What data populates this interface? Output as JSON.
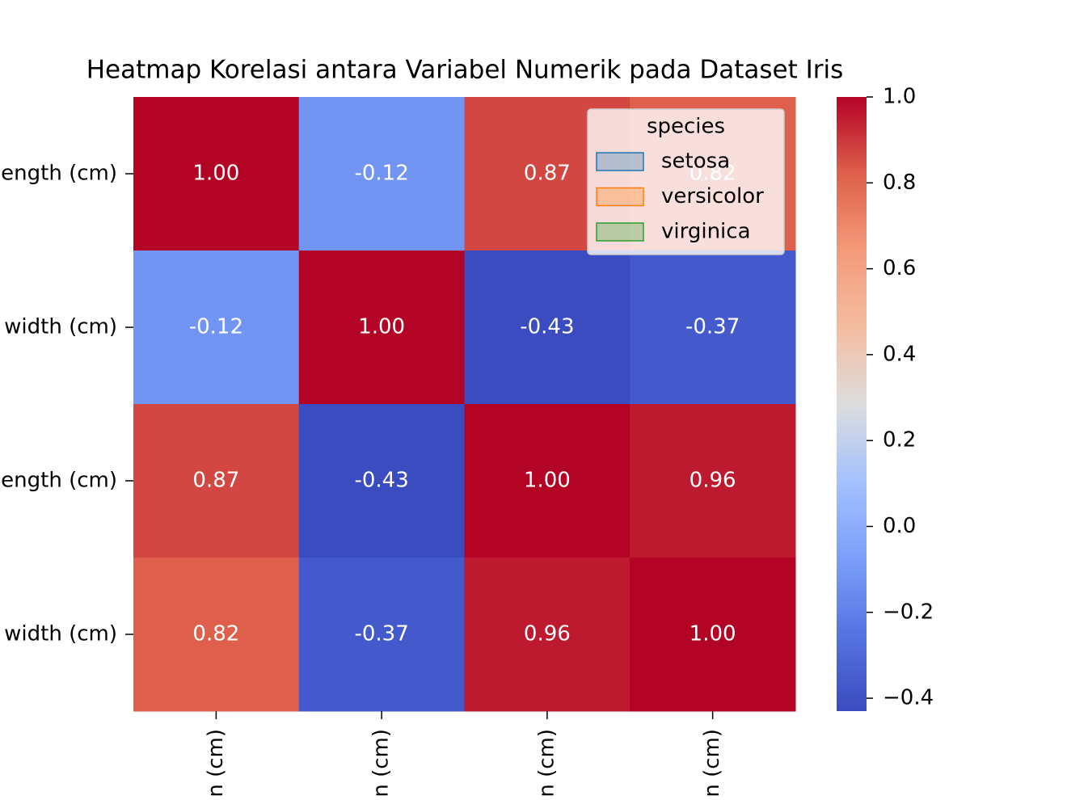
{
  "chart_data": {
    "type": "heatmap",
    "title": "Heatmap Korelasi antara Variabel Numerik pada Dataset Iris",
    "x_categories": [
      "n (cm)",
      "n (cm)",
      "n (cm)",
      "n (cm)"
    ],
    "y_categories": [
      "ength (cm)",
      "width (cm)",
      "ength (cm)",
      "width (cm)"
    ],
    "values": [
      [
        1.0,
        -0.12,
        0.87,
        0.82
      ],
      [
        -0.12,
        1.0,
        -0.43,
        -0.37
      ],
      [
        0.87,
        -0.43,
        1.0,
        0.96
      ],
      [
        0.82,
        -0.37,
        0.96,
        1.0
      ]
    ],
    "value_labels": [
      [
        "1.00",
        "-0.12",
        "0.87",
        "0.82"
      ],
      [
        "-0.12",
        "1.00",
        "-0.43",
        "-0.37"
      ],
      [
        "0.87",
        "-0.43",
        "1.00",
        "0.96"
      ],
      [
        "0.82",
        "-0.37",
        "0.96",
        "1.00"
      ]
    ],
    "colormap": "coolwarm",
    "clim": [
      -0.43,
      1.0
    ],
    "cticks": [
      {
        "value": 1.0,
        "label": "1.0"
      },
      0.8,
      0.6,
      0.4,
      0.2,
      {
        "value": 0.0,
        "label": "0.0"
      },
      {
        "value": -0.2,
        "label": "−0.2"
      },
      {
        "value": -0.4,
        "label": "−0.4"
      }
    ],
    "legend": {
      "title": "species",
      "loc": "upper right",
      "entries": [
        {
          "name": "setosa",
          "color": "#1f77b4"
        },
        {
          "name": "versicolor",
          "color": "#ff7f0e"
        },
        {
          "name": "virginica",
          "color": "#2ca02c"
        }
      ]
    }
  }
}
